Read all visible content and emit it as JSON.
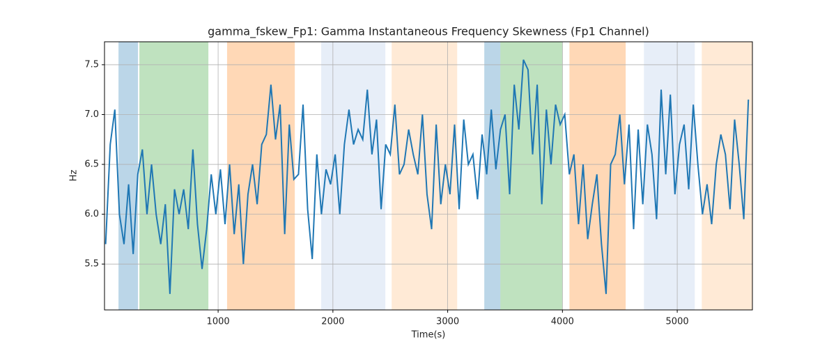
{
  "chart_data": {
    "type": "line",
    "title": "gamma_fskew_Fp1: Gamma Instantaneous Frequency Skewness (Fp1 Channel)",
    "x_label": "Time(s)",
    "y_label": "Hz",
    "xlim": [
      10,
      5655
    ],
    "ylim": [
      5.04,
      7.73
    ],
    "xticks": [
      1000,
      2000,
      3000,
      4000,
      5000
    ],
    "yticks": [
      5.5,
      {
        "value": 6,
        "label": "6.0"
      },
      6.5,
      {
        "value": 7,
        "label": "7.0"
      },
      7.5
    ],
    "grid": true,
    "spans": [
      {
        "x0": 132,
        "x1": 302,
        "color": "rgba(31,119,180,0.3)"
      },
      {
        "x0": 314,
        "x1": 915,
        "color": "rgba(44,160,44,0.3)"
      },
      {
        "x0": 1078,
        "x1": 1668,
        "color": "rgba(255,127,14,0.3)"
      },
      {
        "x0": 1898,
        "x1": 2457,
        "color": "rgba(174,199,232,0.3)"
      },
      {
        "x0": 2512,
        "x1": 3083,
        "color": "rgba(255,187,120,0.3)"
      },
      {
        "x0": 3319,
        "x1": 3459,
        "color": "rgba(31,119,180,0.3)"
      },
      {
        "x0": 3459,
        "x1": 4000,
        "color": "rgba(44,160,44,0.3)"
      },
      {
        "x0": 4061,
        "x1": 4551,
        "color": "rgba(255,127,14,0.3)"
      },
      {
        "x0": 4710,
        "x1": 5153,
        "color": "rgba(174,199,232,0.3)"
      },
      {
        "x0": 5214,
        "x1": 5655,
        "color": "rgba(255,187,120,0.3)"
      }
    ],
    "x": [
      20,
      60,
      100,
      140,
      180,
      220,
      260,
      300,
      340,
      380,
      420,
      460,
      500,
      540,
      580,
      620,
      660,
      700,
      740,
      780,
      820,
      860,
      900,
      940,
      980,
      1020,
      1060,
      1100,
      1140,
      1180,
      1220,
      1260,
      1300,
      1340,
      1380,
      1420,
      1460,
      1500,
      1540,
      1580,
      1620,
      1660,
      1700,
      1740,
      1780,
      1820,
      1860,
      1900,
      1940,
      1980,
      2020,
      2060,
      2100,
      2140,
      2180,
      2220,
      2260,
      2300,
      2340,
      2380,
      2420,
      2460,
      2500,
      2540,
      2580,
      2620,
      2660,
      2700,
      2740,
      2780,
      2820,
      2860,
      2900,
      2940,
      2980,
      3020,
      3060,
      3100,
      3140,
      3180,
      3220,
      3260,
      3300,
      3340,
      3380,
      3420,
      3460,
      3500,
      3540,
      3580,
      3620,
      3660,
      3700,
      3740,
      3780,
      3820,
      3860,
      3900,
      3940,
      3980,
      4020,
      4060,
      4100,
      4140,
      4180,
      4220,
      4260,
      4300,
      4340,
      4380,
      4420,
      4460,
      4500,
      4540,
      4580,
      4620,
      4660,
      4700,
      4740,
      4780,
      4820,
      4860,
      4900,
      4940,
      4980,
      5020,
      5060,
      5100,
      5140,
      5180,
      5220,
      5260,
      5300,
      5340,
      5380,
      5420,
      5460,
      5500,
      5540,
      5580,
      5620
    ],
    "series": [
      {
        "color": "#1f77b4",
        "values": [
          5.7,
          6.7,
          7.05,
          6.0,
          5.7,
          6.3,
          5.6,
          6.4,
          6.65,
          6.0,
          6.5,
          6.0,
          5.7,
          6.1,
          5.2,
          6.25,
          6.0,
          6.25,
          5.85,
          6.65,
          5.9,
          5.45,
          5.85,
          6.4,
          6.0,
          6.45,
          5.9,
          6.5,
          5.8,
          6.3,
          5.5,
          6.2,
          6.5,
          6.1,
          6.7,
          6.8,
          7.3,
          6.75,
          7.1,
          5.8,
          6.9,
          6.35,
          6.4,
          7.1,
          6.05,
          5.55,
          6.6,
          6.0,
          6.45,
          6.3,
          6.6,
          6.0,
          6.7,
          7.05,
          6.7,
          6.85,
          6.75,
          7.25,
          6.6,
          6.95,
          6.05,
          6.7,
          6.6,
          7.1,
          6.4,
          6.5,
          6.85,
          6.6,
          6.4,
          7.0,
          6.2,
          5.85,
          6.9,
          6.1,
          6.5,
          6.2,
          6.9,
          6.05,
          6.95,
          6.5,
          6.6,
          6.15,
          6.8,
          6.4,
          7.05,
          6.45,
          6.85,
          7.0,
          6.2,
          7.3,
          6.85,
          7.55,
          7.45,
          6.6,
          7.3,
          6.1,
          7.05,
          6.5,
          7.1,
          6.9,
          7.0,
          6.4,
          6.6,
          5.9,
          6.5,
          5.75,
          6.1,
          6.4,
          5.7,
          5.2,
          6.5,
          6.6,
          7.0,
          6.3,
          6.9,
          5.85,
          6.85,
          6.1,
          6.9,
          6.6,
          5.95,
          7.25,
          6.4,
          7.2,
          6.2,
          6.7,
          6.9,
          6.25,
          7.1,
          6.5,
          6.0,
          6.3,
          5.9,
          6.5,
          6.8,
          6.6,
          6.05,
          6.95,
          6.5,
          5.95,
          7.15
        ]
      }
    ]
  }
}
